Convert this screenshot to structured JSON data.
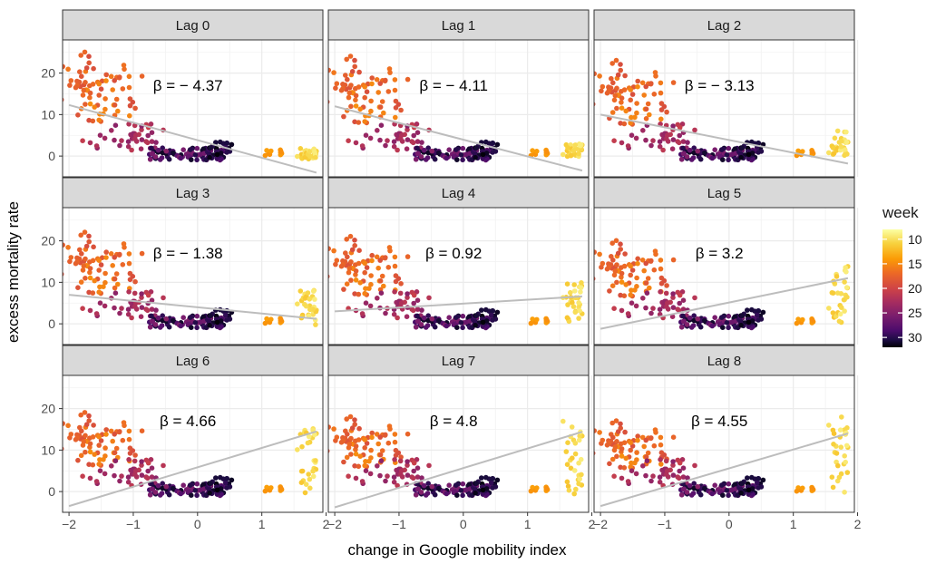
{
  "chart_data": {
    "type": "scatter",
    "facet_layout": "3x3",
    "xlabel": "change in Google mobility index",
    "ylabel": "excess mortality rate",
    "xlim": [
      -2.1,
      1.95
    ],
    "ylim": [
      -5,
      28
    ],
    "x_ticks": [
      -2,
      -1,
      0,
      1,
      2
    ],
    "x_tick_labels": [
      "−2",
      "−1",
      "0",
      "1",
      "2"
    ],
    "y_ticks": [
      0,
      10,
      20
    ],
    "y_tick_labels": [
      "0",
      "10",
      "20"
    ],
    "grid": true,
    "color_legend": {
      "title": "week",
      "position": "right",
      "range": [
        8,
        32
      ],
      "ticks": [
        10,
        15,
        20,
        25,
        30
      ],
      "tick_labels": [
        "10",
        "15",
        "20",
        "25",
        "30"
      ],
      "colors": [
        "#FCFFA4",
        "#F7D13D",
        "#FB9B06",
        "#ED6925",
        "#CF4446",
        "#A52C60",
        "#781C6D",
        "#4A0C6B",
        "#1B0C41",
        "#000004"
      ]
    },
    "line_color": "#bdbdbd",
    "panels": [
      {
        "label": "Lag 0",
        "beta_text": "β = − 4.37",
        "fit": {
          "x": [
            -2,
            1.85
          ],
          "y": [
            12.3,
            -4.0
          ]
        }
      },
      {
        "label": "Lag 1",
        "beta_text": "β = − 4.11",
        "fit": {
          "x": [
            -2,
            1.85
          ],
          "y": [
            12.0,
            -3.5
          ]
        }
      },
      {
        "label": "Lag 2",
        "beta_text": "β = − 3.13",
        "fit": {
          "x": [
            -2,
            1.85
          ],
          "y": [
            10.0,
            -1.8
          ]
        }
      },
      {
        "label": "Lag 3",
        "beta_text": "β = − 1.38",
        "fit": {
          "x": [
            -2,
            1.85
          ],
          "y": [
            7.0,
            1.2
          ]
        }
      },
      {
        "label": "Lag 4",
        "beta_text": "β = 0.92",
        "fit": {
          "x": [
            -2,
            1.85
          ],
          "y": [
            3.0,
            6.6
          ]
        }
      },
      {
        "label": "Lag 5",
        "beta_text": "β = 3.2",
        "fit": {
          "x": [
            -2,
            1.85
          ],
          "y": [
            -1.2,
            11.0
          ]
        }
      },
      {
        "label": "Lag 6",
        "beta_text": "β = 4.66",
        "fit": {
          "x": [
            -2,
            1.85
          ],
          "y": [
            -3.5,
            14.5
          ]
        }
      },
      {
        "label": "Lag 7",
        "beta_text": "β = 4.8",
        "fit": {
          "x": [
            -2,
            1.85
          ],
          "y": [
            -3.8,
            14.4
          ]
        }
      },
      {
        "label": "Lag 8",
        "beta_text": "β = 4.55",
        "fit": {
          "x": [
            -2,
            1.85
          ],
          "y": [
            -3.5,
            14.0
          ]
        }
      }
    ]
  }
}
